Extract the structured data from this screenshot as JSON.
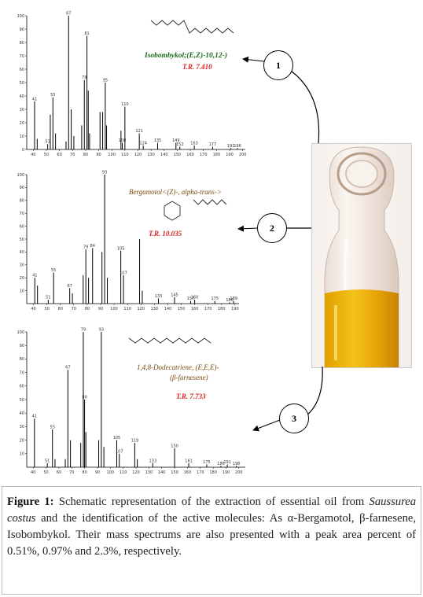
{
  "spectra": [
    {
      "compound": "Isobombykol;(E,Z)-10,12-)",
      "retention_time": "T.R. 7.410",
      "badge": "1",
      "y_ticks": [
        "100",
        "90",
        "80",
        "70",
        "60",
        "50",
        "40",
        "30",
        "20",
        "10",
        "0"
      ],
      "x_ticks": [
        "40",
        "50",
        "60",
        "70",
        "80",
        "90",
        "100",
        "110",
        "120",
        "130",
        "140",
        "150",
        "160",
        "170",
        "180",
        "190",
        "200"
      ],
      "peaks": [
        {
          "mz": 41,
          "intensity": 36,
          "label": "41"
        },
        {
          "mz": 43,
          "intensity": 8,
          "label": ""
        },
        {
          "mz": 51,
          "intensity": 4,
          "label": "51"
        },
        {
          "mz": 53,
          "intensity": 26,
          "label": ""
        },
        {
          "mz": 55,
          "intensity": 39,
          "label": "55"
        },
        {
          "mz": 57,
          "intensity": 12,
          "label": ""
        },
        {
          "mz": 65,
          "intensity": 6,
          "label": ""
        },
        {
          "mz": 67,
          "intensity": 100,
          "label": "67"
        },
        {
          "mz": 69,
          "intensity": 30,
          "label": ""
        },
        {
          "mz": 71,
          "intensity": 10,
          "label": ""
        },
        {
          "mz": 77,
          "intensity": 18,
          "label": ""
        },
        {
          "mz": 79,
          "intensity": 52,
          "label": "79"
        },
        {
          "mz": 81,
          "intensity": 85,
          "label": "81"
        },
        {
          "mz": 82,
          "intensity": 44,
          "label": ""
        },
        {
          "mz": 83,
          "intensity": 12,
          "label": ""
        },
        {
          "mz": 91,
          "intensity": 28,
          "label": ""
        },
        {
          "mz": 93,
          "intensity": 28,
          "label": ""
        },
        {
          "mz": 95,
          "intensity": 50,
          "label": "95"
        },
        {
          "mz": 96,
          "intensity": 18,
          "label": ""
        },
        {
          "mz": 107,
          "intensity": 14,
          "label": ""
        },
        {
          "mz": 108,
          "intensity": 5,
          "label": "108"
        },
        {
          "mz": 110,
          "intensity": 32,
          "label": "110"
        },
        {
          "mz": 121,
          "intensity": 12,
          "label": "121"
        },
        {
          "mz": 124,
          "intensity": 3,
          "label": "124"
        },
        {
          "mz": 135,
          "intensity": 5,
          "label": "135"
        },
        {
          "mz": 149,
          "intensity": 5,
          "label": "149"
        },
        {
          "mz": 152,
          "intensity": 2,
          "label": "152"
        },
        {
          "mz": 163,
          "intensity": 3,
          "label": "163"
        },
        {
          "mz": 177,
          "intensity": 2,
          "label": "177"
        },
        {
          "mz": 191,
          "intensity": 1,
          "label": "191"
        },
        {
          "mz": 196,
          "intensity": 1,
          "label": "196"
        }
      ]
    },
    {
      "compound": "Bergamotol<(Z)-, alpha-trans->",
      "retention_time": "T.R. 10.035",
      "badge": "2",
      "y_ticks": [
        "100",
        "90",
        "80",
        "70",
        "60",
        "50",
        "40",
        "30",
        "20",
        "10"
      ],
      "x_ticks": [
        "40",
        "50",
        "60",
        "70",
        "80",
        "90",
        "100",
        "110",
        "120",
        "130",
        "140",
        "150",
        "160",
        "170",
        "180",
        "190"
      ],
      "peaks": [
        {
          "mz": 41,
          "intensity": 20,
          "label": "41"
        },
        {
          "mz": 43,
          "intensity": 14,
          "label": ""
        },
        {
          "mz": 51,
          "intensity": 3,
          "label": "51"
        },
        {
          "mz": 55,
          "intensity": 24,
          "label": "55"
        },
        {
          "mz": 67,
          "intensity": 12,
          "label": "67"
        },
        {
          "mz": 69,
          "intensity": 8,
          "label": ""
        },
        {
          "mz": 77,
          "intensity": 22,
          "label": ""
        },
        {
          "mz": 79,
          "intensity": 42,
          "label": "79"
        },
        {
          "mz": 81,
          "intensity": 20,
          "label": ""
        },
        {
          "mz": 84,
          "intensity": 43,
          "label": "84"
        },
        {
          "mz": 91,
          "intensity": 40,
          "label": ""
        },
        {
          "mz": 93,
          "intensity": 100,
          "label": "93"
        },
        {
          "mz": 95,
          "intensity": 20,
          "label": ""
        },
        {
          "mz": 105,
          "intensity": 41,
          "label": "105"
        },
        {
          "mz": 107,
          "intensity": 22,
          "label": "107"
        },
        {
          "mz": 119,
          "intensity": 50,
          "label": ""
        },
        {
          "mz": 121,
          "intensity": 10,
          "label": ""
        },
        {
          "mz": 133,
          "intensity": 4,
          "label": "133"
        },
        {
          "mz": 145,
          "intensity": 5,
          "label": "145"
        },
        {
          "mz": 157,
          "intensity": 2,
          "label": "157"
        },
        {
          "mz": 160,
          "intensity": 3,
          "label": "160"
        },
        {
          "mz": 175,
          "intensity": 2,
          "label": "175"
        },
        {
          "mz": 186,
          "intensity": 1,
          "label": "186"
        },
        {
          "mz": 189,
          "intensity": 2,
          "label": "189"
        }
      ]
    },
    {
      "compound": "1,4,8-Dodecatriene, (E,E,E)-",
      "compound2": "(β-farnesene)",
      "retention_time": "T.R. 7.733",
      "badge": "3",
      "y_ticks": [
        "100",
        "90",
        "80",
        "70",
        "60",
        "50",
        "40",
        "30",
        "20",
        "10"
      ],
      "x_ticks": [
        "40",
        "50",
        "60",
        "70",
        "80",
        "90",
        "100",
        "110",
        "120",
        "130",
        "140",
        "150",
        "160",
        "170",
        "180",
        "190",
        "200"
      ],
      "peaks": [
        {
          "mz": 41,
          "intensity": 36,
          "label": "41"
        },
        {
          "mz": 51,
          "intensity": 3,
          "label": "51"
        },
        {
          "mz": 55,
          "intensity": 28,
          "label": "55"
        },
        {
          "mz": 57,
          "intensity": 6,
          "label": ""
        },
        {
          "mz": 65,
          "intensity": 6,
          "label": ""
        },
        {
          "mz": 67,
          "intensity": 72,
          "label": "67"
        },
        {
          "mz": 69,
          "intensity": 20,
          "label": ""
        },
        {
          "mz": 77,
          "intensity": 18,
          "label": ""
        },
        {
          "mz": 79,
          "intensity": 100,
          "label": "79"
        },
        {
          "mz": 80,
          "intensity": 50,
          "label": "80"
        },
        {
          "mz": 81,
          "intensity": 26,
          "label": ""
        },
        {
          "mz": 91,
          "intensity": 20,
          "label": ""
        },
        {
          "mz": 93,
          "intensity": 100,
          "label": "93"
        },
        {
          "mz": 95,
          "intensity": 15,
          "label": ""
        },
        {
          "mz": 105,
          "intensity": 20,
          "label": "105"
        },
        {
          "mz": 107,
          "intensity": 10,
          "label": "107"
        },
        {
          "mz": 119,
          "intensity": 18,
          "label": "119"
        },
        {
          "mz": 121,
          "intensity": 6,
          "label": ""
        },
        {
          "mz": 133,
          "intensity": 3,
          "label": "133"
        },
        {
          "mz": 150,
          "intensity": 14,
          "label": "150"
        },
        {
          "mz": 161,
          "intensity": 3,
          "label": "161"
        },
        {
          "mz": 175,
          "intensity": 2,
          "label": "175"
        },
        {
          "mz": 186,
          "intensity": 1,
          "label": "186"
        },
        {
          "mz": 191,
          "intensity": 2,
          "label": "191"
        },
        {
          "mz": 198,
          "intensity": 1,
          "label": "198"
        }
      ]
    }
  ],
  "caption": {
    "label": "Figure 1:",
    "text_a": " Schematic representation of the extraction of essential oil from ",
    "species": "Saussurea costus",
    "text_b": " and the identification of the active molecules: As α-Bergamotol, β-farnesene, Isobombykol. Their mass spectrums are also presented with a peak area percent of 0.51%, 0.97% and 2.3%, respectively."
  }
}
